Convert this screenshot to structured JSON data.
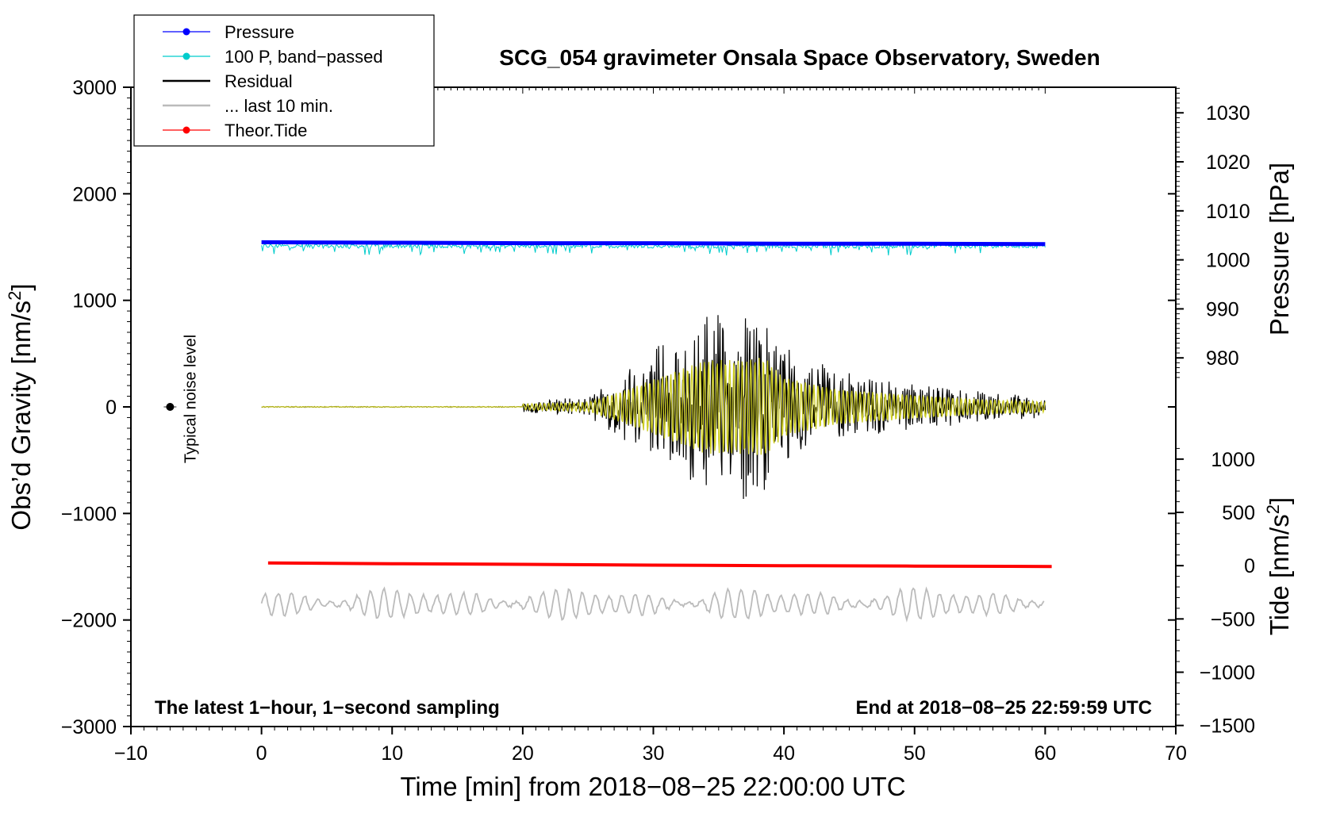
{
  "chart_data": {
    "type": "line",
    "title": "SCG_054 gravimeter Onsala Space Observatory, Sweden",
    "xlabel": "Time [min] from 2018−08−25 22:00:00 UTC",
    "ylabel_left": "Obs’d Gravity [nm/s",
    "ylabel_right_pressure": "Pressure [hPa]",
    "ylabel_right_tide": "Tide [nm/s",
    "unit_superscript": "2",
    "unit_close": "]",
    "xlim": [
      -10,
      70
    ],
    "x_ticks": [
      -10,
      0,
      10,
      20,
      30,
      40,
      50,
      60,
      70
    ],
    "x_tick_labels": [
      "−10",
      "0",
      "10",
      "20",
      "30",
      "40",
      "50",
      "60",
      "70"
    ],
    "ylim_left": [
      -3000,
      3000
    ],
    "y_left_ticks": [
      -3000,
      -2000,
      -1000,
      0,
      1000,
      2000,
      3000
    ],
    "y_left_tick_labels": [
      "−3000",
      "−2000",
      "−1000",
      "0",
      "1000",
      "2000",
      "3000"
    ],
    "pressure_axis": {
      "ticks": [
        980,
        990,
        1000,
        1010,
        1020,
        1030
      ],
      "tick_labels": [
        "980",
        "990",
        "1000",
        "1010",
        "1020",
        "1030"
      ],
      "gravity_at_1000": 1380,
      "gravity_per_hpa": 46
    },
    "tide_axis": {
      "ticks": [
        -1500,
        -1000,
        -500,
        0,
        500,
        1000
      ],
      "tick_labels": [
        "−1500",
        "−1000",
        "−500",
        "0",
        "500",
        "1000"
      ],
      "gravity_at_0": -1490,
      "gravity_per_unit": 1.0
    },
    "legend": [
      {
        "label": "Pressure",
        "color": "#0000ff",
        "marker": true
      },
      {
        "label": "100 P, band−passed",
        "color": "#00cccc",
        "marker": true
      },
      {
        "label": "Residual",
        "color": "#000000",
        "marker": false
      },
      {
        "label": "... last 10 min.",
        "color": "#bbbbbb",
        "marker": false
      },
      {
        "label": "Theor.Tide",
        "color": "#ff0000",
        "marker": true
      }
    ],
    "legend_position": "top-left",
    "series": [
      {
        "name": "Pressure",
        "color": "#0000ff",
        "axis": "pressure_hpa",
        "x": [
          0,
          10,
          20,
          30,
          40,
          50,
          60
        ],
        "y": [
          1003.6,
          1003.5,
          1003.4,
          1003.4,
          1003.3,
          1003.3,
          1003.2
        ]
      },
      {
        "name": "Theor.Tide",
        "color": "#ff0000",
        "axis": "tide_nms2",
        "x": [
          0.5,
          10,
          20,
          30,
          40,
          50,
          60.5
        ],
        "y": [
          25,
          18,
          12,
          5,
          0,
          -4,
          -8
        ]
      },
      {
        "name": "100 P, band−passed",
        "color": "#00cccc",
        "axis": "gravity",
        "style": "noise",
        "x": [
          0,
          60
        ],
        "baseline": 1510,
        "amplitude": 40,
        "dip_amplitude": 80
      },
      {
        "name": "Residual",
        "color": "#000000",
        "axis": "gravity",
        "style": "oscillation",
        "x": [
          0,
          60
        ],
        "onset": 20,
        "envelope_x": [
          20,
          25,
          28,
          31,
          34,
          37,
          38.5,
          40,
          44,
          50,
          55,
          60
        ],
        "envelope_y": [
          50,
          80,
          300,
          550,
          800,
          800,
          850,
          500,
          300,
          200,
          130,
          90
        ]
      },
      {
        "name": "... last 10 min.",
        "color": "#bbbbbb",
        "axis": "gravity",
        "style": "oscillation",
        "x": [
          0,
          60
        ],
        "baseline": -1850,
        "amplitude": 140
      }
    ],
    "filtered_series_color": "#cccc22",
    "annotations": {
      "noise_label": "Typical noise level",
      "noise_x": -7,
      "noise_y": 0,
      "bottom_left": "The latest 1−hour, 1−second sampling",
      "bottom_right": "End at 2018−08−25 22:59:59 UTC"
    }
  }
}
